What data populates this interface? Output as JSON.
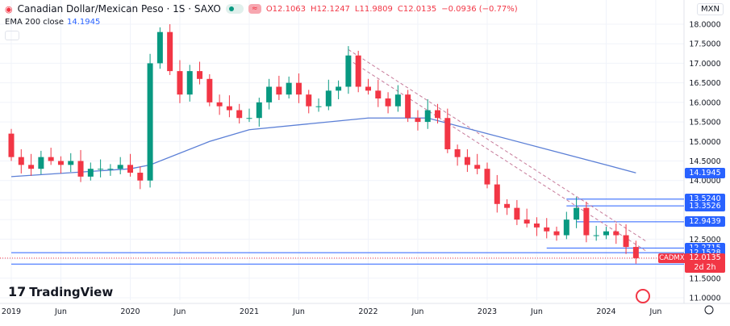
{
  "header": {
    "title": "Canadian Dollar/Mexican Peso · 1S · SAXO",
    "open": "O12.1063",
    "high": "H12.1247",
    "low": "L11.9809",
    "close": "C12.0135",
    "change": "−0.0936 (−0.77%)",
    "currency": "MXN"
  },
  "indicator": {
    "label": "EMA 200 close",
    "value": "14.1945"
  },
  "brand": "TradingView",
  "chart_data": {
    "type": "candlestick",
    "symbol": "CADMXN",
    "ylim": [
      11.0,
      18.0
    ],
    "yticks": [
      "11.0000",
      "11.5000",
      "12.0000",
      "12.5000",
      "13.0000",
      "13.5000",
      "14.0000",
      "14.5000",
      "15.0000",
      "15.5000",
      "16.0000",
      "16.5000",
      "17.0000",
      "17.5000",
      "18.0000"
    ],
    "xticks": [
      "2019",
      "Jun",
      "2020",
      "Jun",
      "2021",
      "Jun",
      "2022",
      "Jun",
      "2023",
      "Jun",
      "2024",
      "Jun"
    ],
    "xtick_dates": [
      "2019-01",
      "2019-06",
      "2020-01",
      "2020-06",
      "2021-01",
      "2021-06",
      "2022-01",
      "2022-06",
      "2023-01",
      "2023-06",
      "2024-01",
      "2024-06"
    ],
    "dates": [
      "2019-01",
      "2019-02",
      "2019-03",
      "2019-04",
      "2019-05",
      "2019-06",
      "2019-07",
      "2019-08",
      "2019-09",
      "2019-10",
      "2019-11",
      "2019-12",
      "2020-01",
      "2020-02",
      "2020-03",
      "2020-04",
      "2020-05",
      "2020-06",
      "2020-07",
      "2020-08",
      "2020-09",
      "2020-10",
      "2020-11",
      "2020-12",
      "2021-01",
      "2021-02",
      "2021-03",
      "2021-04",
      "2021-05",
      "2021-06",
      "2021-07",
      "2021-08",
      "2021-09",
      "2021-10",
      "2021-11",
      "2021-12",
      "2022-01",
      "2022-02",
      "2022-03",
      "2022-04",
      "2022-05",
      "2022-06",
      "2022-07",
      "2022-08",
      "2022-09",
      "2022-10",
      "2022-11",
      "2022-12",
      "2023-01",
      "2023-02",
      "2023-03",
      "2023-04",
      "2023-05",
      "2023-06",
      "2023-07",
      "2023-08",
      "2023-09",
      "2023-10",
      "2023-11",
      "2023-12",
      "2024-01",
      "2024-02",
      "2024-03",
      "2024-04"
    ],
    "close": [
      14.6,
      14.4,
      14.3,
      14.6,
      14.5,
      14.4,
      14.5,
      14.1,
      14.3,
      14.3,
      14.3,
      14.4,
      14.2,
      14.0,
      17.0,
      17.8,
      16.8,
      16.2,
      16.8,
      16.6,
      16.0,
      15.9,
      15.8,
      15.6,
      15.6,
      16.0,
      16.4,
      16.2,
      16.5,
      16.2,
      15.9,
      15.9,
      16.3,
      16.4,
      17.2,
      16.4,
      16.3,
      16.1,
      15.9,
      16.2,
      15.6,
      15.5,
      15.8,
      15.6,
      14.8,
      14.6,
      14.4,
      14.3,
      13.9,
      13.4,
      13.3,
      13.0,
      12.9,
      12.8,
      12.7,
      12.6,
      13.0,
      13.3,
      12.6,
      12.6,
      12.7,
      12.6,
      12.3,
      12.0135
    ],
    "first_open": 15.2,
    "ema200": {
      "name": "EMA 200 close",
      "color": "#5b7fd6",
      "points": [
        [
          "2019-01",
          14.1
        ],
        [
          "2020-01",
          14.3
        ],
        [
          "2020-03",
          14.4
        ],
        [
          "2020-09",
          15.0
        ],
        [
          "2021-01",
          15.3
        ],
        [
          "2021-07",
          15.45
        ],
        [
          "2022-01",
          15.6
        ],
        [
          "2022-07",
          15.6
        ],
        [
          "2023-01",
          15.2
        ],
        [
          "2023-07",
          14.8
        ],
        [
          "2024-01",
          14.4
        ],
        [
          "2024-04",
          14.1945
        ]
      ]
    },
    "price_levels": [
      {
        "value": "14.1945",
        "kind": "ema"
      },
      {
        "value": "13.5240",
        "from": "2023-09"
      },
      {
        "value": "13.3526",
        "from": "2023-09"
      },
      {
        "value": "12.9439",
        "from": "2023-10"
      },
      {
        "value": "12.2715",
        "from": "2023-07"
      },
      {
        "value": "12.1528",
        "from": "2019-01"
      },
      {
        "value": "11.8627",
        "from": "2019-01"
      }
    ],
    "last_price": {
      "value": "12.0135",
      "countdown": "2d 2h"
    },
    "trendlines": [
      [
        [
          "2021-11",
          17.35
        ],
        [
          "2024-05",
          12.45
        ]
      ],
      [
        [
          "2021-11",
          17.1
        ],
        [
          "2024-05",
          12.2
        ]
      ]
    ],
    "colors": {
      "up": "#089981",
      "down": "#f23645",
      "level": "#2962ff"
    }
  }
}
